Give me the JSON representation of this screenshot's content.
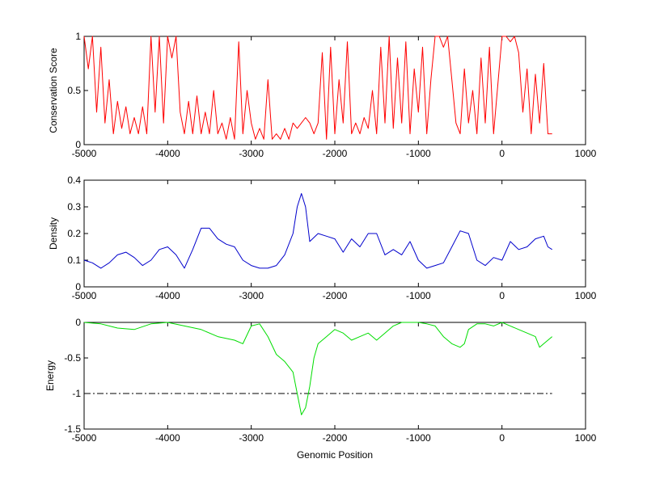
{
  "chart_data": [
    {
      "type": "line",
      "ylabel": "Conservation Score",
      "xlabel": "",
      "xlim": [
        -5000,
        1000
      ],
      "ylim": [
        0,
        1
      ],
      "xticks": [
        -5000,
        -4000,
        -3000,
        -2000,
        -1000,
        0,
        1000
      ],
      "xtick_labels": [
        "-5000",
        "-4000",
        "-3000",
        "-2000",
        "-1000",
        "0",
        "1000"
      ],
      "yticks": [
        0,
        0.5,
        1
      ],
      "ytick_labels": [
        "0",
        "0.5",
        "1"
      ],
      "color": "#ff0000",
      "series": [
        {
          "x": [
            -5000,
            -4950,
            -4900,
            -4850,
            -4800,
            -4750,
            -4700,
            -4650,
            -4600,
            -4550,
            -4500,
            -4450,
            -4400,
            -4350,
            -4300,
            -4250,
            -4200,
            -4150,
            -4100,
            -4050,
            -4000,
            -3950,
            -3900,
            -3850,
            -3800,
            -3750,
            -3700,
            -3650,
            -3600,
            -3550,
            -3500,
            -3450,
            -3400,
            -3350,
            -3300,
            -3250,
            -3200,
            -3150,
            -3100,
            -3050,
            -3000,
            -2950,
            -2900,
            -2850,
            -2800,
            -2750,
            -2700,
            -2650,
            -2600,
            -2550,
            -2500,
            -2450,
            -2400,
            -2350,
            -2300,
            -2250,
            -2200,
            -2150,
            -2100,
            -2050,
            -2000,
            -1950,
            -1900,
            -1850,
            -1800,
            -1750,
            -1700,
            -1650,
            -1600,
            -1550,
            -1500,
            -1450,
            -1400,
            -1350,
            -1300,
            -1250,
            -1200,
            -1150,
            -1100,
            -1050,
            -1000,
            -950,
            -900,
            -850,
            -800,
            -750,
            -700,
            -650,
            -600,
            -550,
            -500,
            -450,
            -400,
            -350,
            -300,
            -250,
            -200,
            -150,
            -100,
            -50,
            0,
            50,
            100,
            150,
            200,
            250,
            300,
            350,
            400,
            450,
            500,
            550,
            600
          ],
          "y": [
            1.0,
            0.7,
            1.0,
            0.3,
            0.9,
            0.2,
            0.6,
            0.1,
            0.4,
            0.15,
            0.35,
            0.1,
            0.25,
            0.1,
            0.35,
            0.1,
            1.0,
            0.3,
            1.0,
            0.2,
            1.0,
            0.8,
            1.0,
            0.3,
            0.1,
            0.4,
            0.1,
            0.45,
            0.1,
            0.3,
            0.1,
            0.5,
            0.1,
            0.2,
            0.05,
            0.25,
            0.05,
            0.95,
            0.1,
            0.5,
            0.2,
            0.05,
            0.15,
            0.05,
            0.6,
            0.05,
            0.1,
            0.05,
            0.15,
            0.05,
            0.2,
            0.15,
            0.2,
            0.25,
            0.2,
            0.1,
            0.2,
            0.85,
            0.05,
            0.9,
            0.1,
            0.6,
            0.2,
            0.95,
            0.1,
            0.2,
            0.1,
            0.25,
            0.15,
            0.5,
            0.1,
            0.9,
            0.2,
            1.0,
            0.15,
            0.8,
            0.2,
            0.95,
            0.1,
            0.7,
            0.3,
            0.9,
            0.1,
            0.6,
            1.0,
            1.0,
            0.9,
            1.0,
            0.6,
            0.2,
            0.1,
            0.7,
            0.2,
            0.5,
            0.1,
            0.8,
            0.2,
            0.9,
            0.1,
            0.55,
            1.0,
            1.0,
            0.95,
            1.0,
            0.85,
            0.3,
            0.7,
            0.1,
            0.65,
            0.2,
            0.75,
            0.1,
            0.1
          ]
        }
      ]
    },
    {
      "type": "line",
      "ylabel": "Density",
      "xlabel": "",
      "xlim": [
        -5000,
        1000
      ],
      "ylim": [
        0,
        0.4
      ],
      "xticks": [
        -5000,
        -4000,
        -3000,
        -2000,
        -1000,
        0,
        1000
      ],
      "xtick_labels": [
        "-5000",
        "-4000",
        "-3000",
        "-2000",
        "-1000",
        "0",
        "1000"
      ],
      "yticks": [
        0,
        0.1,
        0.2,
        0.3,
        0.4
      ],
      "ytick_labels": [
        "0",
        "0.1",
        "0.2",
        "0.3",
        "0.4"
      ],
      "color": "#0000cc",
      "series": [
        {
          "x": [
            -5000,
            -4900,
            -4800,
            -4700,
            -4600,
            -4500,
            -4400,
            -4300,
            -4200,
            -4100,
            -4000,
            -3900,
            -3800,
            -3700,
            -3600,
            -3500,
            -3400,
            -3300,
            -3200,
            -3100,
            -3000,
            -2900,
            -2800,
            -2700,
            -2600,
            -2500,
            -2450,
            -2400,
            -2350,
            -2300,
            -2200,
            -2100,
            -2000,
            -1900,
            -1800,
            -1700,
            -1600,
            -1500,
            -1400,
            -1300,
            -1200,
            -1100,
            -1000,
            -900,
            -800,
            -700,
            -600,
            -500,
            -400,
            -300,
            -200,
            -100,
            0,
            100,
            200,
            300,
            400,
            500,
            550,
            600
          ],
          "y": [
            0.1,
            0.09,
            0.07,
            0.09,
            0.12,
            0.13,
            0.11,
            0.08,
            0.1,
            0.14,
            0.15,
            0.12,
            0.07,
            0.14,
            0.22,
            0.22,
            0.18,
            0.16,
            0.15,
            0.1,
            0.08,
            0.07,
            0.07,
            0.08,
            0.12,
            0.2,
            0.3,
            0.35,
            0.3,
            0.17,
            0.2,
            0.19,
            0.18,
            0.13,
            0.18,
            0.15,
            0.2,
            0.2,
            0.12,
            0.14,
            0.12,
            0.17,
            0.1,
            0.07,
            0.08,
            0.09,
            0.15,
            0.21,
            0.2,
            0.1,
            0.08,
            0.11,
            0.1,
            0.17,
            0.14,
            0.15,
            0.18,
            0.19,
            0.15,
            0.14
          ]
        }
      ]
    },
    {
      "type": "line",
      "ylabel": "Energy",
      "xlabel": "Genomic Position",
      "xlim": [
        -5000,
        1000
      ],
      "ylim": [
        -1.5,
        0
      ],
      "xticks": [
        -5000,
        -4000,
        -3000,
        -2000,
        -1000,
        0,
        1000
      ],
      "xtick_labels": [
        "-5000",
        "-4000",
        "-3000",
        "-2000",
        "-1000",
        "0",
        "1000"
      ],
      "yticks": [
        -1.5,
        -1,
        -0.5,
        0
      ],
      "ytick_labels": [
        "-1.5",
        "-1",
        "-0.5",
        "0"
      ],
      "color": "#00dd00",
      "series": [
        {
          "x": [
            -5000,
            -4800,
            -4600,
            -4400,
            -4200,
            -4000,
            -3800,
            -3600,
            -3400,
            -3200,
            -3100,
            -3000,
            -2900,
            -2800,
            -2700,
            -2600,
            -2500,
            -2450,
            -2400,
            -2350,
            -2300,
            -2250,
            -2200,
            -2100,
            -2000,
            -1900,
            -1800,
            -1700,
            -1600,
            -1500,
            -1400,
            -1300,
            -1200,
            -1100,
            -1000,
            -900,
            -800,
            -700,
            -600,
            -500,
            -450,
            -400,
            -300,
            -200,
            -100,
            0,
            100,
            200,
            300,
            400,
            450,
            500,
            550,
            600
          ],
          "y": [
            0,
            -0.02,
            -0.08,
            -0.1,
            -0.02,
            0,
            -0.05,
            -0.1,
            -0.2,
            -0.25,
            -0.3,
            -0.05,
            -0.02,
            -0.2,
            -0.45,
            -0.55,
            -0.7,
            -1.0,
            -1.3,
            -1.2,
            -0.9,
            -0.5,
            -0.3,
            -0.2,
            -0.1,
            -0.15,
            -0.25,
            -0.2,
            -0.15,
            -0.25,
            -0.15,
            -0.05,
            0,
            0,
            0,
            -0.02,
            -0.05,
            -0.2,
            -0.3,
            -0.35,
            -0.3,
            -0.1,
            -0.02,
            -0.02,
            -0.05,
            0,
            -0.05,
            -0.1,
            -0.15,
            -0.2,
            -0.35,
            -0.3,
            -0.25,
            -0.2
          ]
        }
      ],
      "reference_line": {
        "y": -1,
        "style": "dash-dot",
        "x_range": [
          -5000,
          600
        ]
      }
    }
  ]
}
